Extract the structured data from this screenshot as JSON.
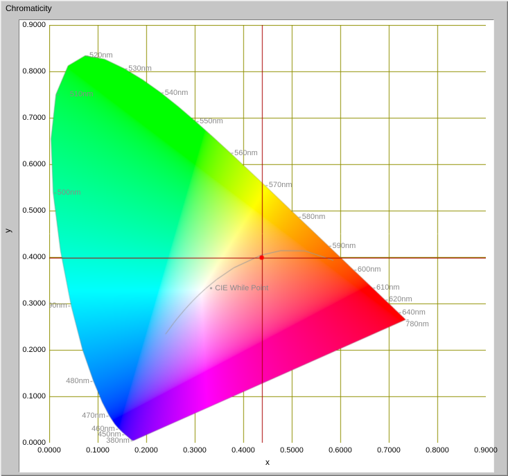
{
  "window": {
    "title": "Chromaticity",
    "background": "#c6c6c6"
  },
  "axes": {
    "x_label": "x",
    "y_label": "y",
    "x_tick_labels": [
      "0.0000",
      "0.1000",
      "0.2000",
      "0.3000",
      "0.4000",
      "0.5000",
      "0.6000",
      "0.7000",
      "0.8000",
      "0.9000"
    ],
    "y_tick_labels": [
      "0.0000",
      "0.1000",
      "0.2000",
      "0.3000",
      "0.4000",
      "0.5000",
      "0.6000",
      "0.7000",
      "0.8000",
      "0.9000"
    ],
    "x_range": [
      0,
      0.9
    ],
    "y_range": [
      0,
      0.9
    ],
    "grid_color": "#8f8f00",
    "tick_text_color": "#000000"
  },
  "chart_data": {
    "type": "area",
    "subtype": "cie-1931-chromaticity-diagram",
    "title": "Chromaticity",
    "xlabel": "x",
    "ylabel": "y",
    "xlim": [
      0,
      0.9
    ],
    "ylim": [
      0,
      0.9
    ],
    "grid": true,
    "label_color": "#8a8a8a",
    "spectral_locus": [
      [
        380,
        0.1741,
        0.005
      ],
      [
        385,
        0.174,
        0.005
      ],
      [
        390,
        0.1738,
        0.0049
      ],
      [
        395,
        0.1736,
        0.0049
      ],
      [
        400,
        0.1733,
        0.0048
      ],
      [
        405,
        0.173,
        0.0048
      ],
      [
        410,
        0.1726,
        0.0048
      ],
      [
        415,
        0.1721,
        0.0048
      ],
      [
        420,
        0.1714,
        0.0051
      ],
      [
        425,
        0.1703,
        0.0058
      ],
      [
        430,
        0.1689,
        0.0069
      ],
      [
        435,
        0.1669,
        0.0086
      ],
      [
        440,
        0.1644,
        0.0109
      ],
      [
        445,
        0.1611,
        0.0138
      ],
      [
        450,
        0.1566,
        0.0177
      ],
      [
        455,
        0.151,
        0.0227
      ],
      [
        460,
        0.144,
        0.0297
      ],
      [
        465,
        0.1355,
        0.0399
      ],
      [
        470,
        0.1241,
        0.0578
      ],
      [
        475,
        0.1096,
        0.0868
      ],
      [
        480,
        0.0913,
        0.1327
      ],
      [
        485,
        0.0687,
        0.2007
      ],
      [
        490,
        0.0454,
        0.295
      ],
      [
        495,
        0.0235,
        0.4127
      ],
      [
        500,
        0.0082,
        0.5384
      ],
      [
        505,
        0.0039,
        0.6548
      ],
      [
        510,
        0.0139,
        0.7502
      ],
      [
        515,
        0.0389,
        0.812
      ],
      [
        520,
        0.0743,
        0.8338
      ],
      [
        525,
        0.1142,
        0.8262
      ],
      [
        530,
        0.1547,
        0.8059
      ],
      [
        535,
        0.1929,
        0.7816
      ],
      [
        540,
        0.2296,
        0.7543
      ],
      [
        545,
        0.2658,
        0.7243
      ],
      [
        550,
        0.3016,
        0.6923
      ],
      [
        555,
        0.3373,
        0.6589
      ],
      [
        560,
        0.3731,
        0.6245
      ],
      [
        565,
        0.4087,
        0.5896
      ],
      [
        570,
        0.4441,
        0.5547
      ],
      [
        575,
        0.4788,
        0.5202
      ],
      [
        580,
        0.5125,
        0.4866
      ],
      [
        585,
        0.5448,
        0.4544
      ],
      [
        590,
        0.5752,
        0.4242
      ],
      [
        595,
        0.6029,
        0.3965
      ],
      [
        600,
        0.627,
        0.3725
      ],
      [
        605,
        0.6482,
        0.3514
      ],
      [
        610,
        0.6658,
        0.334
      ],
      [
        615,
        0.6801,
        0.3197
      ],
      [
        620,
        0.6915,
        0.3083
      ],
      [
        625,
        0.7006,
        0.2993
      ],
      [
        630,
        0.7079,
        0.292
      ],
      [
        635,
        0.714,
        0.2859
      ],
      [
        640,
        0.719,
        0.2809
      ],
      [
        645,
        0.723,
        0.277
      ],
      [
        650,
        0.726,
        0.274
      ],
      [
        655,
        0.7283,
        0.2717
      ],
      [
        660,
        0.73,
        0.27
      ],
      [
        665,
        0.7311,
        0.2689
      ],
      [
        670,
        0.732,
        0.268
      ],
      [
        675,
        0.7327,
        0.2673
      ],
      [
        680,
        0.7334,
        0.2666
      ],
      [
        685,
        0.734,
        0.266
      ],
      [
        690,
        0.7344,
        0.2656
      ],
      [
        695,
        0.7346,
        0.2654
      ],
      [
        700,
        0.7347,
        0.2653
      ]
    ],
    "wavelength_labels": [
      {
        "nm": 380,
        "text": "380nm",
        "side": "left",
        "x": 0.1741,
        "y": 0.005
      },
      {
        "nm": 450,
        "text": "450nm",
        "side": "left",
        "x": 0.1566,
        "y": 0.0177
      },
      {
        "nm": 460,
        "text": "460nm",
        "side": "left",
        "x": 0.144,
        "y": 0.0297
      },
      {
        "nm": 470,
        "text": "470nm",
        "side": "left",
        "x": 0.1241,
        "y": 0.0578
      },
      {
        "nm": 480,
        "text": "480nm",
        "side": "left",
        "x": 0.0913,
        "y": 0.1327
      },
      {
        "nm": 490,
        "text": "490nm",
        "side": "left",
        "x": 0.0454,
        "y": 0.295
      },
      {
        "nm": 500,
        "text": "500nm",
        "side": "right",
        "x": 0.0082,
        "y": 0.5384
      },
      {
        "nm": 510,
        "text": "510nm",
        "side": "right",
        "x": 0.0139,
        "y": 0.7502,
        "dx": 14
      },
      {
        "nm": 520,
        "text": "520nm",
        "side": "right",
        "x": 0.0743,
        "y": 0.8338
      },
      {
        "nm": 530,
        "text": "530nm",
        "side": "right",
        "x": 0.1547,
        "y": 0.8059
      },
      {
        "nm": 540,
        "text": "540nm",
        "side": "right",
        "x": 0.2296,
        "y": 0.7543
      },
      {
        "nm": 550,
        "text": "550nm",
        "side": "right",
        "x": 0.3016,
        "y": 0.6923
      },
      {
        "nm": 560,
        "text": "560nm",
        "side": "right",
        "x": 0.3731,
        "y": 0.6245
      },
      {
        "nm": 570,
        "text": "570nm",
        "side": "right",
        "x": 0.4441,
        "y": 0.5547
      },
      {
        "nm": 580,
        "text": "580nm",
        "side": "right",
        "x": 0.5125,
        "y": 0.4866
      },
      {
        "nm": 590,
        "text": "590nm",
        "side": "right",
        "x": 0.5752,
        "y": 0.4242
      },
      {
        "nm": 600,
        "text": "600nm",
        "side": "right",
        "x": 0.627,
        "y": 0.3725
      },
      {
        "nm": 610,
        "text": "610nm",
        "side": "right",
        "x": 0.6658,
        "y": 0.334
      },
      {
        "nm": 620,
        "text": "620nm",
        "side": "right",
        "x": 0.6915,
        "y": 0.3083
      },
      {
        "nm": 640,
        "text": "640nm",
        "side": "right",
        "x": 0.719,
        "y": 0.2809
      },
      {
        "nm": 780,
        "text": "780nm",
        "side": "right",
        "x": 0.7347,
        "y": 0.2653,
        "dx": -6,
        "dy": 7
      }
    ],
    "planckian_locus": [
      [
        0.2399,
        0.234
      ],
      [
        0.2565,
        0.2577
      ],
      [
        0.2637,
        0.2673
      ],
      [
        0.2807,
        0.2884
      ],
      [
        0.2952,
        0.3048
      ],
      [
        0.3064,
        0.3166
      ],
      [
        0.3221,
        0.3318
      ],
      [
        0.3451,
        0.3516
      ],
      [
        0.3804,
        0.3768
      ],
      [
        0.4369,
        0.4041
      ],
      [
        0.477,
        0.4137
      ],
      [
        0.5267,
        0.4133
      ],
      [
        0.5857,
        0.3931
      ]
    ],
    "white_point": {
      "x": 0.3333,
      "y": 0.3333,
      "label": "CIE While Point",
      "color": "#8a8a8a"
    },
    "cursor": {
      "x": 0.438,
      "y": 0.399,
      "line_color": "#aa0000",
      "point_color": "#ff0000"
    }
  }
}
